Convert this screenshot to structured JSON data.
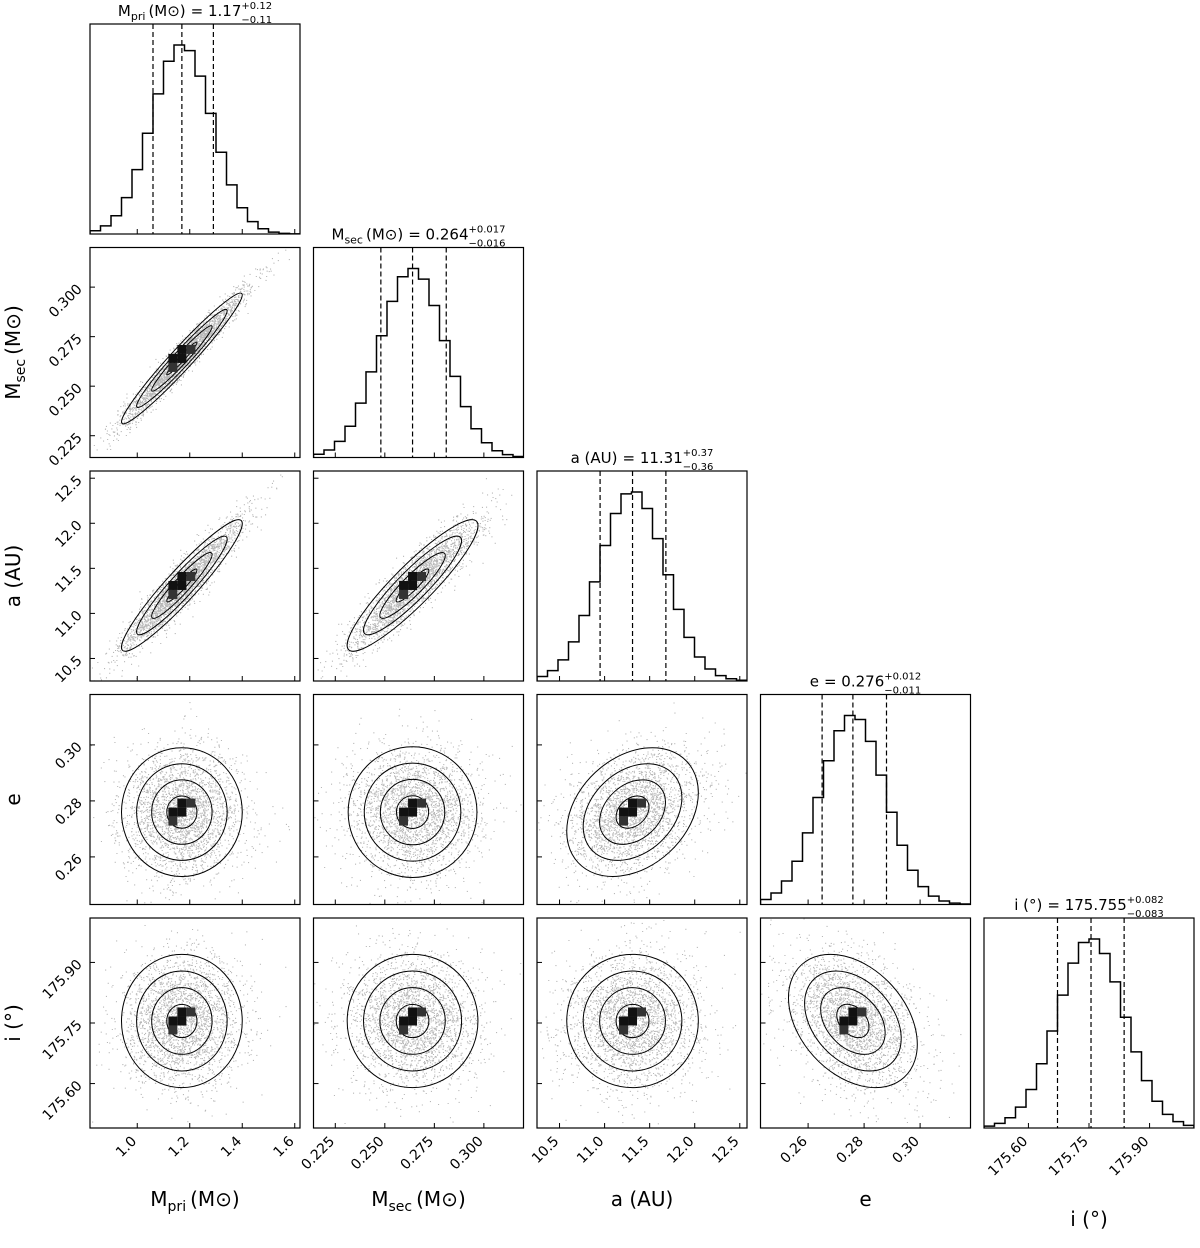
{
  "chart_data": {
    "type": "corner",
    "parameters": [
      {
        "key": "mpri",
        "label_main": "M",
        "label_sub": "pri",
        "label_rest": "(M⊙)",
        "title_lhs": "= 1.17",
        "title_plus": "+0.12",
        "title_minus": "−0.11",
        "median": 1.17,
        "err_plus": 0.12,
        "err_minus": 0.11,
        "range": [
          0.82,
          1.62
        ],
        "ticks": [
          1.0,
          1.2,
          1.4,
          1.6
        ],
        "tick_labels": [
          "1.0",
          "1.2",
          "1.4",
          "1.6"
        ]
      },
      {
        "key": "msec",
        "label_main": "M",
        "label_sub": "sec",
        "label_rest": "(M⊙)",
        "title_lhs": "= 0.264",
        "title_plus": "+0.017",
        "title_minus": "−0.016",
        "median": 0.264,
        "err_plus": 0.017,
        "err_minus": 0.016,
        "range": [
          0.214,
          0.32
        ],
        "ticks": [
          0.225,
          0.25,
          0.275,
          0.3
        ],
        "tick_labels": [
          "0.225",
          "0.250",
          "0.275",
          "0.300"
        ]
      },
      {
        "key": "a",
        "label_main": "a (AU)",
        "label_sub": "",
        "label_rest": "",
        "title_lhs": "= 11.31",
        "title_plus": "+0.37",
        "title_minus": "−0.36",
        "median": 11.31,
        "err_plus": 0.37,
        "err_minus": 0.36,
        "range": [
          10.25,
          12.58
        ],
        "ticks": [
          10.5,
          11.0,
          11.5,
          12.0,
          12.5
        ],
        "tick_labels": [
          "10.5",
          "11.0",
          "11.5",
          "12.0",
          "12.5"
        ]
      },
      {
        "key": "e",
        "label_main": "e",
        "label_sub": "",
        "label_rest": "",
        "title_lhs": "= 0.276",
        "title_plus": "+0.012",
        "title_minus": "−0.011",
        "median": 0.276,
        "err_plus": 0.012,
        "err_minus": 0.011,
        "range": [
          0.243,
          0.318
        ],
        "ticks": [
          0.26,
          0.28,
          0.3
        ],
        "tick_labels": [
          "0.26",
          "0.28",
          "0.30"
        ]
      },
      {
        "key": "i",
        "label_main": "i (°)",
        "label_sub": "",
        "label_rest": "",
        "title_lhs": "= 175.755",
        "title_plus": "+0.082",
        "title_minus": "−0.083",
        "median": 175.755,
        "err_plus": 0.082,
        "err_minus": 0.083,
        "range": [
          175.49,
          176.01
        ],
        "ticks": [
          175.6,
          175.75,
          175.9
        ],
        "tick_labels": [
          "175.60",
          "175.75",
          "175.90"
        ]
      }
    ],
    "correlations": [
      [
        1.0,
        0.97,
        0.94,
        0.0,
        0.0
      ],
      [
        0.97,
        1.0,
        0.91,
        0.0,
        0.0
      ],
      [
        0.94,
        0.91,
        1.0,
        0.3,
        0.0
      ],
      [
        0.0,
        0.0,
        0.3,
        1.0,
        -0.35
      ],
      [
        0.0,
        0.0,
        0.0,
        -0.35,
        1.0
      ]
    ],
    "histogram_bins": 20,
    "contour_levels_sigma": [
      0.5,
      1.0,
      1.5,
      2.0
    ],
    "colors": {
      "ink": "#000000",
      "background": "#ffffff"
    }
  }
}
